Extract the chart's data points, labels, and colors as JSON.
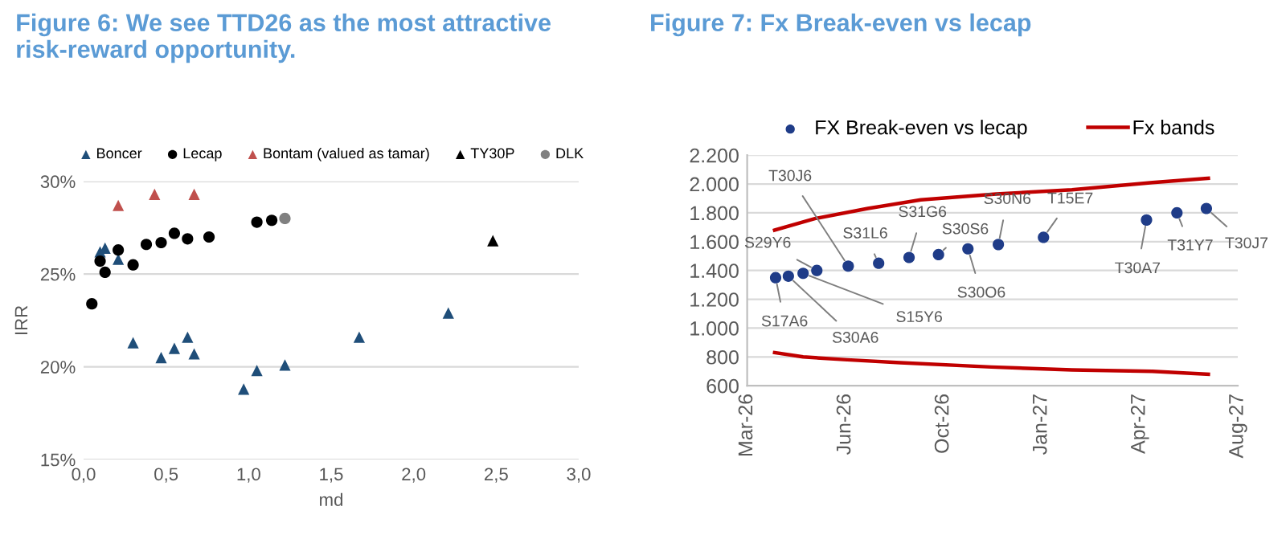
{
  "chart_data": [
    {
      "type": "scatter",
      "title": "Figure 6: We see TTD26 as the most attractive risk-reward opportunity.",
      "xlabel": "md",
      "ylabel": "IRR",
      "xlim": [
        0,
        3
      ],
      "xticks": [
        {
          "value": 0,
          "label": "0,0"
        },
        {
          "value": 0.5,
          "label": "0,5"
        },
        {
          "value": 1,
          "label": "1,0"
        },
        {
          "value": 1.5,
          "label": "1,5"
        },
        {
          "value": 2,
          "label": "2,0"
        },
        {
          "value": 2.5,
          "label": "2,5"
        },
        {
          "value": 3,
          "label": "3,0"
        }
      ],
      "ylim": [
        15,
        30
      ],
      "yticks": [
        {
          "value": 15,
          "label": "15%"
        },
        {
          "value": 20,
          "label": "20%"
        },
        {
          "value": 25,
          "label": "25%"
        },
        {
          "value": 30,
          "label": "30%"
        }
      ],
      "grid": "y",
      "legend": "top",
      "series": [
        {
          "name": "Boncer",
          "color": "#1f4e79",
          "marker": "triangle",
          "x": [
            0.1,
            0.13,
            0.21,
            0.3,
            0.47,
            0.55,
            0.63,
            0.67,
            0.97,
            1.05,
            1.22,
            1.67,
            2.21
          ],
          "values": [
            26.2,
            26.4,
            25.8,
            21.3,
            20.5,
            21.0,
            21.6,
            20.7,
            18.8,
            19.8,
            20.1,
            21.6,
            22.9
          ]
        },
        {
          "name": "Lecap",
          "color": "#000000",
          "marker": "circle",
          "x": [
            0.05,
            0.1,
            0.13,
            0.21,
            0.3,
            0.38,
            0.47,
            0.55,
            0.63,
            0.76,
            1.05,
            1.14
          ],
          "values": [
            23.4,
            25.7,
            25.1,
            26.3,
            25.5,
            26.6,
            26.7,
            27.2,
            26.9,
            27.0,
            27.8,
            27.9
          ]
        },
        {
          "name": "Bontam (valued as tamar)",
          "color": "#c0504d",
          "marker": "triangle",
          "x": [
            0.21,
            0.43,
            0.67
          ],
          "values": [
            28.7,
            29.3,
            29.3
          ]
        },
        {
          "name": "TY30P",
          "color": "#000000",
          "marker": "triangle",
          "x": [
            2.48
          ],
          "values": [
            26.8
          ]
        },
        {
          "name": "DLK",
          "color": "#808080",
          "marker": "circle",
          "x": [
            1.22
          ],
          "values": [
            28.0
          ]
        }
      ]
    },
    {
      "type": "scatter",
      "title": "Figure 7: Fx Break-even vs lecap",
      "xlim": [
        "2026-03-19",
        "2027-08-01"
      ],
      "xticks": [
        {
          "value": "2026-03-19",
          "label": "Mar-26"
        },
        {
          "value": "2026-06-27",
          "label": "Jun-26"
        },
        {
          "value": "2026-10-05",
          "label": "Oct-26"
        },
        {
          "value": "2027-01-13",
          "label": "Jan-27"
        },
        {
          "value": "2027-04-23",
          "label": "Apr-27"
        },
        {
          "value": "2027-08-01",
          "label": "Aug-27"
        }
      ],
      "ylim": [
        600,
        2200
      ],
      "yticks": [
        600,
        800,
        {
          "value": 1000,
          "label": "1.000"
        },
        {
          "value": 1200,
          "label": "1.200"
        },
        {
          "value": 1400,
          "label": "1.400"
        },
        {
          "value": 1600,
          "label": "1.600"
        },
        {
          "value": 1800,
          "label": "1.800"
        },
        {
          "value": 2000,
          "label": "2.000"
        },
        {
          "value": 2200,
          "label": "2.200"
        }
      ],
      "grid": "y",
      "legend": "top",
      "series": [
        {
          "name": "FX Break-even vs lecap",
          "color": "#1f3c88",
          "marker": "circle",
          "x": [
            "2026-04-17",
            "2026-04-30",
            "2026-05-15",
            "2026-05-29",
            "2026-06-30",
            "2026-07-31",
            "2026-08-31",
            "2026-09-30",
            "2026-10-30",
            "2026-11-30",
            "2027-01-15",
            "2027-04-30",
            "2027-05-31",
            "2027-06-30"
          ],
          "values": [
            1350,
            1360,
            1380,
            1400,
            1430,
            1450,
            1490,
            1510,
            1550,
            1580,
            1630,
            1750,
            1800,
            1830
          ]
        },
        {
          "name": "Fx bands",
          "type": "line",
          "color": "#c00000",
          "marker": "none",
          "x": [
            "2026-04-16",
            "2026-05-27",
            "2026-07-20",
            "2026-09-12",
            "2026-11-28",
            "2027-02-13",
            "2027-05-06",
            "2027-07-02"
          ],
          "values": [
            1680,
            1760,
            1830,
            1890,
            1930,
            1960,
            2010,
            2040
          ]
        },
        {
          "type": "line",
          "color": "#c00000",
          "marker": "none",
          "x": [
            "2026-04-16",
            "2026-05-15",
            "2026-06-29",
            "2026-08-22",
            "2026-11-23",
            "2027-02-13",
            "2027-05-06",
            "2027-07-02"
          ],
          "values": [
            830,
            800,
            780,
            760,
            730,
            710,
            700,
            680
          ]
        }
      ],
      "annotations": [
        {
          "text": "S17A6",
          "x": "2026-04-17",
          "y": 1350
        },
        {
          "text": "S30A6",
          "x": "2026-04-30",
          "y": 1360
        },
        {
          "text": "S15Y6",
          "x": "2026-05-15",
          "y": 1380
        },
        {
          "text": "S29Y6",
          "x": "2026-05-29",
          "y": 1400
        },
        {
          "text": "T30J6",
          "x": "2026-06-30",
          "y": 1430
        },
        {
          "text": "S31L6",
          "x": "2026-07-31",
          "y": 1450
        },
        {
          "text": "S31G6",
          "x": "2026-08-31",
          "y": 1490
        },
        {
          "text": "S30S6",
          "x": "2026-09-30",
          "y": 1510
        },
        {
          "text": "S30O6",
          "x": "2026-10-30",
          "y": 1550
        },
        {
          "text": "S30N6",
          "x": "2026-11-30",
          "y": 1580
        },
        {
          "text": "T15E7",
          "x": "2027-01-15",
          "y": 1630
        },
        {
          "text": "T30A7",
          "x": "2027-04-30",
          "y": 1750
        },
        {
          "text": "T31Y7",
          "x": "2027-05-31",
          "y": 1800
        },
        {
          "text": "T30J7",
          "x": "2027-06-30",
          "y": 1830
        }
      ]
    }
  ]
}
